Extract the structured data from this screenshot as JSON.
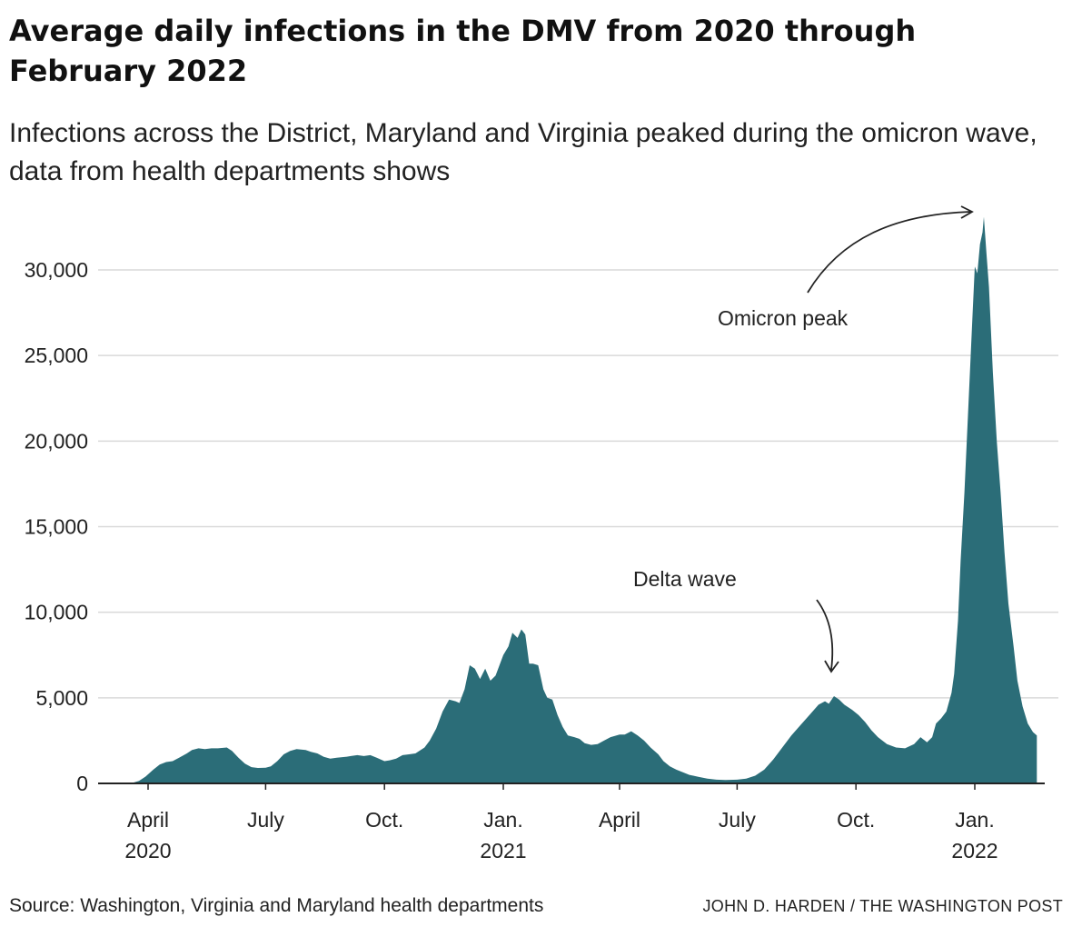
{
  "header": {
    "title": "Average daily infections in the DMV from 2020 through February 2022",
    "subtitle": "Infections across the District, Maryland and Virginia peaked during the omicron wave, data from health departments shows"
  },
  "footer": {
    "source": "Source: Washington, Virginia and Maryland health departments",
    "credit": "JOHN D. HARDEN / THE WASHINGTON POST"
  },
  "colors": {
    "area": "#2b6d78",
    "grid": "#d9d9d9",
    "axis": "#222222"
  },
  "chart_data": {
    "type": "area",
    "title": "Average daily infections in the DMV from 2020 through February 2022",
    "xlabel": "",
    "ylabel": "",
    "ylim": [
      0,
      33000
    ],
    "grid": true,
    "yticks": [
      0,
      5000,
      10000,
      15000,
      20000,
      25000,
      30000
    ],
    "ytick_labels": [
      "0",
      "5,000",
      "10,000",
      "15,000",
      "20,000",
      "25,000",
      "30,000"
    ],
    "xticks": [
      {
        "date": "2020-04-01",
        "line1": "April",
        "line2": "2020"
      },
      {
        "date": "2020-07-01",
        "line1": "July",
        "line2": ""
      },
      {
        "date": "2020-10-01",
        "line1": "Oct.",
        "line2": ""
      },
      {
        "date": "2021-01-01",
        "line1": "Jan.",
        "line2": "2021"
      },
      {
        "date": "2021-04-01",
        "line1": "April",
        "line2": ""
      },
      {
        "date": "2021-07-01",
        "line1": "July",
        "line2": ""
      },
      {
        "date": "2021-10-01",
        "line1": "Oct.",
        "line2": ""
      },
      {
        "date": "2022-01-01",
        "line1": "Jan.",
        "line2": "2022"
      }
    ],
    "annotations": [
      {
        "label": "Omicron peak",
        "date": "2022-01-10",
        "value": 33000
      },
      {
        "label": "Delta wave",
        "date": "2021-09-10",
        "value": 5000
      }
    ],
    "series": [
      {
        "points": [
          [
            "2020-03-15",
            0
          ],
          [
            "2020-03-20",
            30
          ],
          [
            "2020-03-25",
            150
          ],
          [
            "2020-03-30",
            400
          ],
          [
            "2020-04-05",
            800
          ],
          [
            "2020-04-10",
            1100
          ],
          [
            "2020-04-15",
            1250
          ],
          [
            "2020-04-20",
            1300
          ],
          [
            "2020-04-25",
            1500
          ],
          [
            "2020-05-01",
            1750
          ],
          [
            "2020-05-05",
            1950
          ],
          [
            "2020-05-10",
            2050
          ],
          [
            "2020-05-15",
            2000
          ],
          [
            "2020-05-20",
            2050
          ],
          [
            "2020-05-25",
            2050
          ],
          [
            "2020-06-01",
            2100
          ],
          [
            "2020-06-05",
            1900
          ],
          [
            "2020-06-10",
            1500
          ],
          [
            "2020-06-15",
            1150
          ],
          [
            "2020-06-20",
            950
          ],
          [
            "2020-06-25",
            900
          ],
          [
            "2020-07-01",
            920
          ],
          [
            "2020-07-05",
            1000
          ],
          [
            "2020-07-10",
            1300
          ],
          [
            "2020-07-15",
            1700
          ],
          [
            "2020-07-20",
            1900
          ],
          [
            "2020-07-25",
            2000
          ],
          [
            "2020-08-01",
            1950
          ],
          [
            "2020-08-05",
            1850
          ],
          [
            "2020-08-10",
            1750
          ],
          [
            "2020-08-15",
            1550
          ],
          [
            "2020-08-20",
            1450
          ],
          [
            "2020-08-25",
            1500
          ],
          [
            "2020-09-01",
            1550
          ],
          [
            "2020-09-05",
            1600
          ],
          [
            "2020-09-10",
            1650
          ],
          [
            "2020-09-15",
            1600
          ],
          [
            "2020-09-20",
            1650
          ],
          [
            "2020-09-25",
            1500
          ],
          [
            "2020-10-01",
            1300
          ],
          [
            "2020-10-05",
            1350
          ],
          [
            "2020-10-10",
            1450
          ],
          [
            "2020-10-15",
            1650
          ],
          [
            "2020-10-20",
            1700
          ],
          [
            "2020-10-25",
            1750
          ],
          [
            "2020-11-01",
            2100
          ],
          [
            "2020-11-05",
            2500
          ],
          [
            "2020-11-10",
            3200
          ],
          [
            "2020-11-15",
            4200
          ],
          [
            "2020-11-20",
            4900
          ],
          [
            "2020-11-25",
            4800
          ],
          [
            "2020-11-28",
            4700
          ],
          [
            "2020-12-02",
            5500
          ],
          [
            "2020-12-06",
            6900
          ],
          [
            "2020-12-10",
            6700
          ],
          [
            "2020-12-14",
            6100
          ],
          [
            "2020-12-18",
            6700
          ],
          [
            "2020-12-22",
            6000
          ],
          [
            "2020-12-26",
            6300
          ],
          [
            "2021-01-01",
            7500
          ],
          [
            "2021-01-05",
            8000
          ],
          [
            "2021-01-08",
            8800
          ],
          [
            "2021-01-12",
            8500
          ],
          [
            "2021-01-15",
            9000
          ],
          [
            "2021-01-18",
            8700
          ],
          [
            "2021-01-21",
            7000
          ],
          [
            "2021-01-24",
            7000
          ],
          [
            "2021-01-28",
            6900
          ],
          [
            "2021-02-01",
            5500
          ],
          [
            "2021-02-04",
            5000
          ],
          [
            "2021-02-08",
            4900
          ],
          [
            "2021-02-12",
            4000
          ],
          [
            "2021-02-16",
            3300
          ],
          [
            "2021-02-20",
            2800
          ],
          [
            "2021-02-25",
            2700
          ],
          [
            "2021-03-01",
            2600
          ],
          [
            "2021-03-05",
            2350
          ],
          [
            "2021-03-10",
            2250
          ],
          [
            "2021-03-15",
            2300
          ],
          [
            "2021-03-20",
            2500
          ],
          [
            "2021-03-25",
            2700
          ],
          [
            "2021-04-01",
            2850
          ],
          [
            "2021-04-05",
            2850
          ],
          [
            "2021-04-10",
            3050
          ],
          [
            "2021-04-15",
            2800
          ],
          [
            "2021-04-20",
            2500
          ],
          [
            "2021-04-25",
            2100
          ],
          [
            "2021-05-01",
            1700
          ],
          [
            "2021-05-05",
            1300
          ],
          [
            "2021-05-10",
            1000
          ],
          [
            "2021-05-15",
            800
          ],
          [
            "2021-05-20",
            650
          ],
          [
            "2021-05-25",
            500
          ],
          [
            "2021-06-01",
            380
          ],
          [
            "2021-06-08",
            280
          ],
          [
            "2021-06-15",
            220
          ],
          [
            "2021-06-22",
            200
          ],
          [
            "2021-07-01",
            220
          ],
          [
            "2021-07-08",
            280
          ],
          [
            "2021-07-15",
            450
          ],
          [
            "2021-07-22",
            800
          ],
          [
            "2021-07-29",
            1400
          ],
          [
            "2021-08-05",
            2100
          ],
          [
            "2021-08-12",
            2800
          ],
          [
            "2021-08-19",
            3400
          ],
          [
            "2021-08-26",
            4000
          ],
          [
            "2021-09-02",
            4600
          ],
          [
            "2021-09-07",
            4800
          ],
          [
            "2021-09-10",
            4650
          ],
          [
            "2021-09-14",
            5100
          ],
          [
            "2021-09-18",
            4900
          ],
          [
            "2021-09-22",
            4600
          ],
          [
            "2021-09-28",
            4300
          ],
          [
            "2021-10-03",
            4000
          ],
          [
            "2021-10-08",
            3600
          ],
          [
            "2021-10-13",
            3100
          ],
          [
            "2021-10-18",
            2700
          ],
          [
            "2021-10-25",
            2300
          ],
          [
            "2021-11-01",
            2100
          ],
          [
            "2021-11-08",
            2050
          ],
          [
            "2021-11-15",
            2300
          ],
          [
            "2021-11-20",
            2700
          ],
          [
            "2021-11-25",
            2400
          ],
          [
            "2021-11-29",
            2700
          ],
          [
            "2021-12-02",
            3500
          ],
          [
            "2021-12-06",
            3800
          ],
          [
            "2021-12-10",
            4200
          ],
          [
            "2021-12-14",
            5300
          ],
          [
            "2021-12-16",
            6400
          ],
          [
            "2021-12-19",
            9500
          ],
          [
            "2021-12-21",
            13000
          ],
          [
            "2021-12-24",
            17000
          ],
          [
            "2021-12-27",
            22000
          ],
          [
            "2021-12-30",
            27000
          ],
          [
            "2022-01-01",
            30200
          ],
          [
            "2022-01-03",
            29800
          ],
          [
            "2022-01-05",
            31500
          ],
          [
            "2022-01-07",
            32200
          ],
          [
            "2022-01-08",
            33100
          ],
          [
            "2022-01-10",
            31000
          ],
          [
            "2022-01-12",
            29000
          ],
          [
            "2022-01-15",
            24000
          ],
          [
            "2022-01-18",
            20000
          ],
          [
            "2022-01-21",
            17000
          ],
          [
            "2022-01-24",
            13500
          ],
          [
            "2022-01-27",
            10500
          ],
          [
            "2022-01-31",
            8000
          ],
          [
            "2022-02-03",
            6000
          ],
          [
            "2022-02-07",
            4500
          ],
          [
            "2022-02-11",
            3500
          ],
          [
            "2022-02-15",
            3000
          ],
          [
            "2022-02-18",
            2800
          ]
        ]
      }
    ]
  }
}
